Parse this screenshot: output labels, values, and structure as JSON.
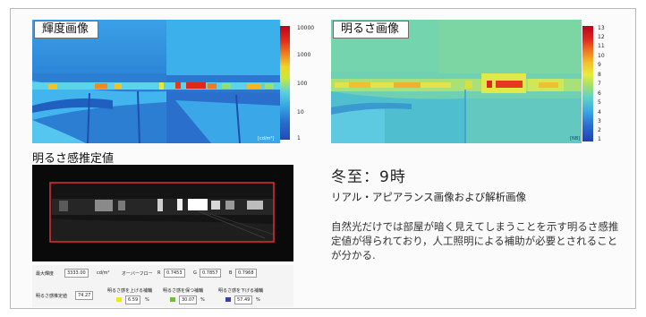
{
  "luminance_panel": {
    "title": "輝度画像",
    "scale_labels": [
      "10000",
      "1000",
      "100",
      "10",
      "1"
    ],
    "unit": "[cd/m²]"
  },
  "brightness_panel": {
    "title": "明るさ画像",
    "scale_labels": [
      "13",
      "12",
      "11",
      "10",
      "9",
      "8",
      "7",
      "6",
      "5",
      "4",
      "3",
      "2",
      "1"
    ],
    "unit": "[NB]"
  },
  "estimation_panel": {
    "title": "明るさ感推定値",
    "max_luminance_label": "最大輝度",
    "max_luminance_value": "3333.00",
    "max_luminance_unit": "cd/m²",
    "overflow_label": "オーバーフロー",
    "r_label": "R",
    "r_value": "0.7453",
    "g_label": "G",
    "g_value": "0.7857",
    "b_label": "B",
    "b_value": "0.7968",
    "estimate_label": "明るさ感推定値",
    "estimate_value": "74.27",
    "raise_label": "明るさ感を上げる補輔",
    "raise_value": "6.59",
    "keep_label": "明るさ感を保つ補輔",
    "keep_value": "30.07",
    "lower_label": "明るさ感を下げる補輔",
    "lower_value": "57.49",
    "percent": "%",
    "colors": {
      "raise": "#e8e824",
      "keep": "#6fbf3a",
      "lower": "#3a3fa8"
    }
  },
  "caption": {
    "heading": "冬至：9時",
    "subheading": "リアル・アピアランス画像および解析画像",
    "body": "自然光だけでは部屋が暗く見えてしまうことを示す明るさ感推定値が得られており，人工照明による補助が必要とされることが分かる."
  }
}
